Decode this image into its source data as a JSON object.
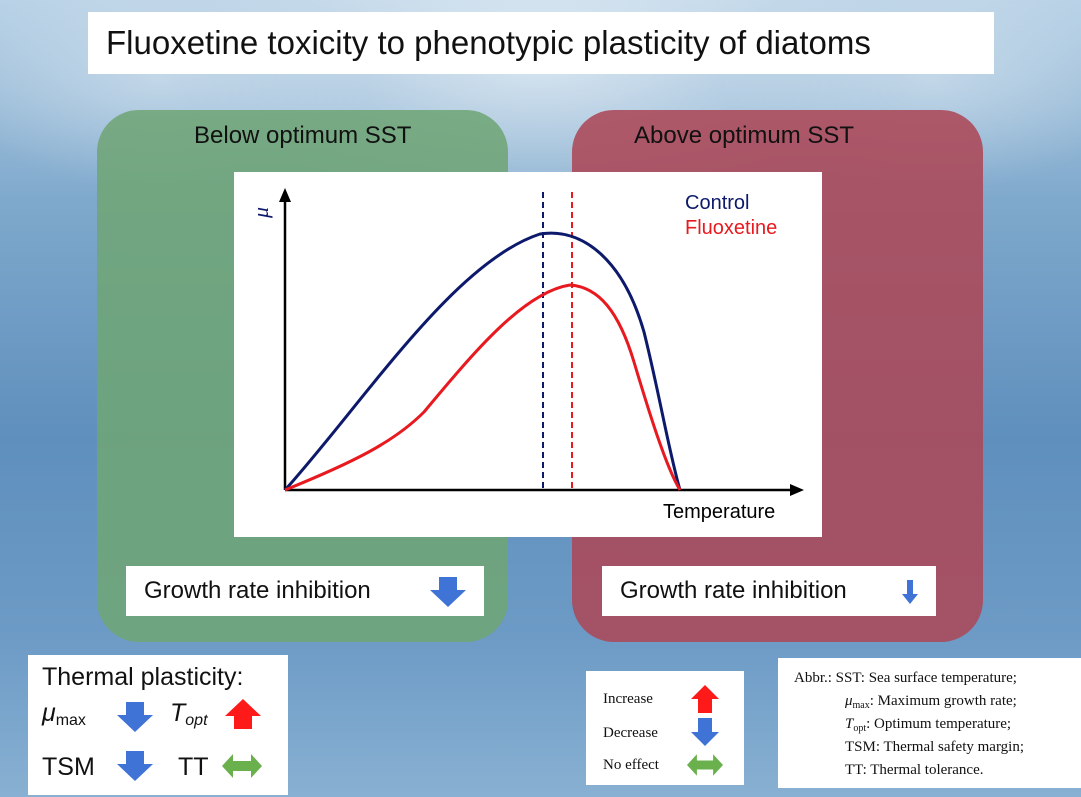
{
  "title": "Fluoxetine toxicity to phenotypic plasticity of diatoms",
  "panels": {
    "below": {
      "label": "Below optimum SST",
      "growth": "Growth rate inhibition"
    },
    "above": {
      "label": "Above optimum SST",
      "growth": "Growth rate inhibition"
    }
  },
  "chart_data": {
    "type": "line",
    "ylabel": "μ",
    "xlabel": "Temperature",
    "series": [
      {
        "name": "Control",
        "color": "#0d1a6b"
      },
      {
        "name": "Fluoxetine",
        "color": "#e8191f"
      }
    ],
    "grid": false,
    "legend": "top-right"
  },
  "thermal": {
    "heading": "Thermal plasticity:",
    "mu_symbol": "μ",
    "mu_sub": "max",
    "t_symbol": "T",
    "t_sub": "opt",
    "tsm": "TSM",
    "tt": "TT"
  },
  "legend": {
    "increase": "Increase",
    "decrease": "Decrease",
    "no_effect": "No effect"
  },
  "abbr": {
    "prefix": "Abbr.:",
    "sst": "SST: Sea surface temperature;",
    "mu_symbol": "μ",
    "mu_sub": "max",
    "mu_text": ": Maximum growth rate;",
    "t_symbol": "T",
    "t_sub": "opt",
    "t_text": ": Optimum temperature;",
    "tsm": "TSM: Thermal safety margin;",
    "tt": "TT: Thermal tolerance."
  },
  "colors": {
    "increase": "#ff1a1a",
    "decrease": "#3f73d6",
    "no_effect": "#6ab04c",
    "control": "#0d1a6b",
    "fluoxetine": "#e8191f"
  }
}
